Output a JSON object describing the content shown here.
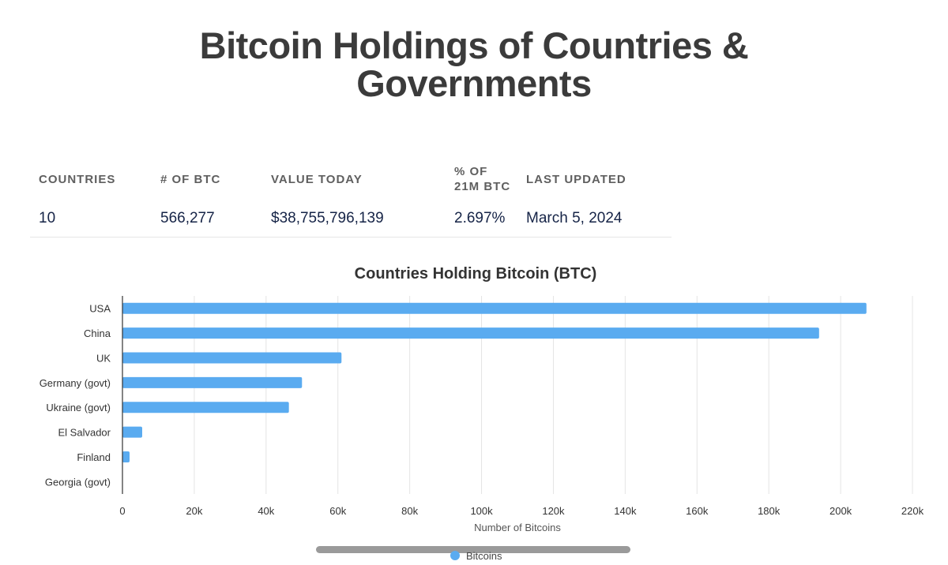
{
  "page": {
    "title_line1": "Bitcoin Holdings of Countries &",
    "title_line2": "Governments"
  },
  "stats": {
    "headers": {
      "countries": "COUNTRIES",
      "btc": "# OF BTC",
      "value": "VALUE TODAY",
      "pct_line1": "% OF",
      "pct_line2": "21M BTC",
      "updated": "LAST UPDATED"
    },
    "values": {
      "countries": "10",
      "btc": "566,277",
      "value": "$38,755,796,139",
      "pct": "2.697%",
      "updated": "March 5, 2024"
    }
  },
  "colors": {
    "bar": "#5aabf0",
    "grid": "#e4e4e4",
    "axis": "#333333",
    "text": "#333333"
  },
  "chart_data": {
    "type": "bar",
    "orientation": "horizontal",
    "title": "Countries Holding Bitcoin (BTC)",
    "xlabel": "Number of Bitcoins",
    "ylabel": "",
    "categories": [
      "USA",
      "China",
      "UK",
      "Germany (govt)",
      "Ukraine (govt)",
      "El Salvador",
      "Finland",
      "Georgia (govt)"
    ],
    "series": [
      {
        "name": "Bitcoins",
        "values": [
          207189,
          194000,
          61000,
          50000,
          46351,
          5500,
          1981,
          66
        ]
      }
    ],
    "xlim": [
      0,
      220000
    ],
    "x_ticks": [
      0,
      20000,
      40000,
      60000,
      80000,
      100000,
      120000,
      140000,
      160000,
      180000,
      200000,
      220000
    ],
    "x_tick_labels": [
      "0",
      "20k",
      "40k",
      "60k",
      "80k",
      "100k",
      "120k",
      "140k",
      "160k",
      "180k",
      "200k",
      "220k"
    ],
    "grid": true,
    "legend_position": "bottom-center"
  }
}
